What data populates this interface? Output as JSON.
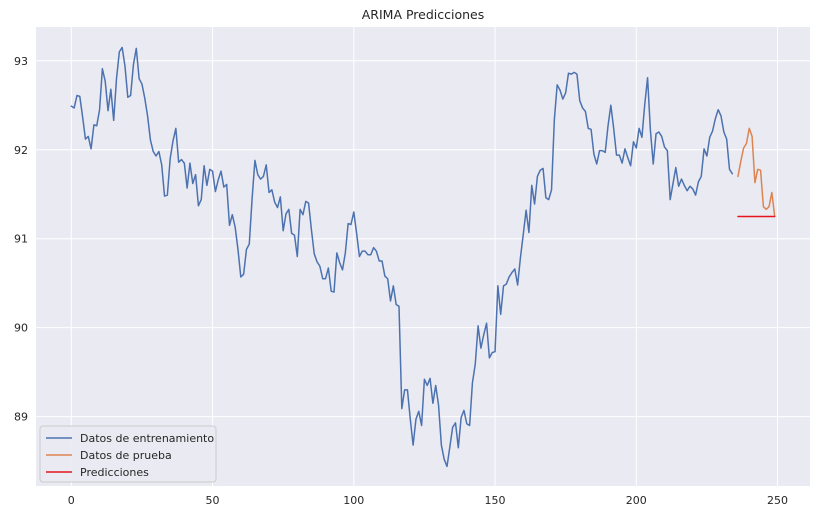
{
  "chart_data": {
    "type": "line",
    "title": "ARIMA Predicciones",
    "xlabel": "",
    "ylabel": "",
    "xlim": [
      -12.5,
      261.5
    ],
    "ylim": [
      88.22,
      93.38
    ],
    "xticks": [
      0,
      50,
      100,
      150,
      200,
      250
    ],
    "yticks": [
      89,
      90,
      91,
      92,
      93
    ],
    "grid": true,
    "legend_position": "lower-left",
    "colors": {
      "background": "#eaeaf2",
      "grid": "#ffffff",
      "training": "#4c72b0",
      "test": "#dd8452",
      "prediction": "#e8141c"
    },
    "series": [
      {
        "name": "Datos de entrenamiento",
        "x_start": 0,
        "values": [
          92.49,
          92.47,
          92.61,
          92.6,
          92.37,
          92.12,
          92.15,
          92.01,
          92.28,
          92.27,
          92.45,
          92.91,
          92.77,
          92.44,
          92.68,
          92.33,
          92.8,
          93.1,
          93.15,
          92.94,
          92.59,
          92.61,
          92.96,
          93.14,
          92.8,
          92.74,
          92.58,
          92.38,
          92.11,
          91.98,
          91.93,
          91.98,
          91.83,
          91.48,
          91.49,
          91.9,
          92.1,
          92.24,
          91.86,
          91.89,
          91.85,
          91.57,
          91.85,
          91.62,
          91.72,
          91.37,
          91.44,
          91.82,
          91.6,
          91.78,
          91.76,
          91.53,
          91.66,
          91.76,
          91.58,
          91.61,
          91.15,
          91.27,
          91.13,
          90.88,
          90.57,
          90.6,
          90.88,
          90.94,
          91.45,
          91.88,
          91.72,
          91.67,
          91.7,
          91.83,
          91.52,
          91.55,
          91.41,
          91.35,
          91.47,
          91.09,
          91.28,
          91.33,
          91.06,
          91.04,
          90.8,
          91.33,
          91.27,
          91.42,
          91.4,
          91.1,
          90.83,
          90.74,
          90.69,
          90.55,
          90.55,
          90.67,
          90.41,
          90.4,
          90.84,
          90.73,
          90.65,
          90.84,
          91.17,
          91.16,
          91.3,
          91.06,
          90.8,
          90.86,
          90.86,
          90.82,
          90.82,
          90.9,
          90.86,
          90.75,
          90.75,
          90.58,
          90.55,
          90.3,
          90.47,
          90.26,
          90.24,
          89.09,
          89.3,
          89.3,
          88.97,
          88.68,
          88.97,
          89.06,
          88.9,
          89.42,
          89.35,
          89.43,
          89.15,
          89.35,
          89.13,
          88.68,
          88.52,
          88.44,
          88.66,
          88.88,
          88.93,
          88.65,
          88.99,
          89.07,
          88.92,
          88.9,
          89.38,
          89.59,
          90.02,
          89.77,
          89.92,
          90.05,
          89.66,
          89.72,
          89.73,
          90.47,
          90.15,
          90.47,
          90.49,
          90.57,
          90.62,
          90.66,
          90.48,
          90.79,
          91.05,
          91.32,
          91.07,
          91.6,
          91.39,
          91.7,
          91.77,
          91.79,
          91.46,
          91.44,
          91.55,
          92.34,
          92.73,
          92.67,
          92.57,
          92.64,
          92.86,
          92.85,
          92.87,
          92.85,
          92.55,
          92.47,
          92.43,
          92.24,
          92.23,
          91.95,
          91.84,
          91.99,
          91.99,
          91.97,
          92.27,
          92.5,
          92.24,
          91.94,
          91.94,
          91.85,
          92.01,
          91.91,
          91.82,
          92.09,
          92.02,
          92.24,
          92.14,
          92.51,
          92.81,
          92.22,
          91.84,
          92.18,
          92.2,
          92.15,
          92.03,
          91.99,
          91.44,
          91.62,
          91.8,
          91.59,
          91.67,
          91.6,
          91.54,
          91.59,
          91.56,
          91.49,
          91.64,
          91.7,
          92.01,
          91.93,
          92.14,
          92.21,
          92.35,
          92.45,
          92.38,
          92.2,
          92.12,
          91.78,
          91.73
        ]
      },
      {
        "name": "Datos de prueba",
        "x_start": 236,
        "values": [
          91.7,
          91.87,
          92.02,
          92.07,
          92.24,
          92.15,
          91.63,
          91.78,
          91.77,
          91.36,
          91.33,
          91.36,
          91.52,
          91.25
        ]
      },
      {
        "name": "Predicciones",
        "x_start": 236,
        "values": [
          91.25,
          91.25,
          91.25,
          91.25,
          91.25,
          91.25,
          91.25,
          91.25,
          91.25,
          91.25,
          91.25,
          91.25,
          91.25,
          91.25
        ]
      }
    ]
  }
}
